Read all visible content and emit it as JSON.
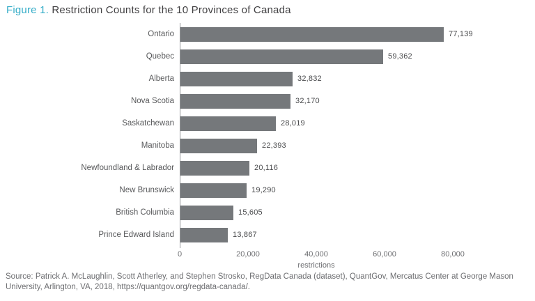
{
  "title": {
    "prefix": "Figure 1.",
    "text": " Restriction Counts for the 10 Provinces of Canada"
  },
  "chart_data": {
    "type": "bar",
    "orientation": "horizontal",
    "title": "Figure 1. Restriction Counts for the 10 Provinces of Canada",
    "categories": [
      "Ontario",
      "Quebec",
      "Alberta",
      "Nova Scotia",
      "Saskatchewan",
      "Manitoba",
      "Newfoundland & Labrador",
      "New Brunswick",
      "British Columbia",
      "Prince Edward Island"
    ],
    "values": [
      77139,
      59362,
      32832,
      32170,
      28019,
      22393,
      20116,
      19290,
      15605,
      13867
    ],
    "value_labels": [
      "77,139",
      "59,362",
      "32,832",
      "32,170",
      "28,019",
      "22,393",
      "20,116",
      "19,290",
      "15,605",
      "13,867"
    ],
    "xlabel": "restrictions",
    "xlim": [
      0,
      80000
    ],
    "x_ticks": [
      "0",
      "20,000",
      "40,000",
      "60,000",
      "80,000"
    ],
    "grid": false,
    "legend": false,
    "bar_color": "#75787B"
  },
  "source": "Source: Patrick A. McLaughlin, Scott Atherley, and Stephen Strosko, RegData Canada (dataset), QuantGov, Mercatus Center at George Mason University, Arlington, VA, 2018, https://quantgov.org/regdata-canada/.",
  "colors": {
    "accent": "#35ADC8",
    "title_text": "#414042",
    "bar_fill": "#75787B",
    "axis_line": "#939598",
    "category_text": "#58595B",
    "value_text": "#4A4B4D",
    "tick_text": "#6D6E71",
    "source_text": "#6D6E71",
    "background": "#FFFFFF"
  }
}
